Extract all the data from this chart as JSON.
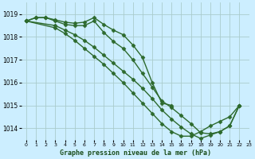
{
  "title": "Graphe pression niveau de la mer (hPa)",
  "bg_color": "#cceeff",
  "grid_color": "#aacccc",
  "line_color": "#2d6a2d",
  "xlim": [
    -0.5,
    23
  ],
  "ylim": [
    1013.5,
    1019.5
  ],
  "yticks": [
    1014,
    1015,
    1016,
    1017,
    1018,
    1019
  ],
  "xticks": [
    0,
    1,
    2,
    3,
    4,
    5,
    6,
    7,
    8,
    9,
    10,
    11,
    12,
    13,
    14,
    15,
    16,
    17,
    18,
    19,
    20,
    21,
    22,
    23
  ],
  "series": [
    {
      "x": [
        0,
        1,
        2,
        3,
        4,
        5,
        6,
        7,
        8,
        9,
        10,
        11,
        12,
        13,
        14,
        15
      ],
      "y": [
        1018.7,
        1018.85,
        1018.85,
        1018.75,
        1018.65,
        1018.6,
        1018.65,
        1018.85,
        1018.55,
        1018.3,
        1018.1,
        1017.65,
        1017.1,
        1016.0,
        1015.1,
        1015.0
      ],
      "marker": "D",
      "markersize": 2.5,
      "lw": 1.0
    },
    {
      "x": [
        0,
        1,
        2,
        3,
        4,
        5,
        6,
        7,
        8,
        9,
        10,
        11,
        12,
        13,
        14,
        15,
        16,
        17,
        18,
        19,
        20,
        21,
        22
      ],
      "y": [
        1018.7,
        1018.85,
        1018.85,
        1018.7,
        1018.55,
        1018.5,
        1018.5,
        1018.7,
        1018.2,
        1017.8,
        1017.5,
        1017.0,
        1016.4,
        1015.8,
        1015.2,
        1014.9,
        1014.55,
        1014.2,
        1013.8,
        1013.75,
        1013.85,
        1014.1,
        1015.0
      ],
      "marker": "D",
      "markersize": 2.5,
      "lw": 1.0
    },
    {
      "x": [
        0,
        3,
        4,
        5,
        6,
        7,
        8,
        9,
        10,
        11,
        12,
        13,
        14,
        15,
        16,
        17,
        18,
        19,
        20,
        21,
        22
      ],
      "y": [
        1018.7,
        1018.5,
        1018.3,
        1018.1,
        1017.85,
        1017.55,
        1017.2,
        1016.85,
        1016.5,
        1016.15,
        1015.75,
        1015.3,
        1014.8,
        1014.4,
        1014.05,
        1013.75,
        1013.55,
        1013.7,
        1013.85,
        1014.1,
        1015.0
      ],
      "marker": "D",
      "markersize": 2.5,
      "lw": 1.0
    },
    {
      "x": [
        0,
        3,
        4,
        5,
        6,
        7,
        8,
        9,
        10,
        11,
        12,
        13,
        14,
        15,
        16,
        17,
        18,
        19,
        20,
        21,
        22
      ],
      "y": [
        1018.7,
        1018.4,
        1018.15,
        1017.85,
        1017.5,
        1017.15,
        1016.8,
        1016.4,
        1016.0,
        1015.55,
        1015.1,
        1014.65,
        1014.2,
        1013.85,
        1013.65,
        1013.65,
        1013.85,
        1014.1,
        1014.3,
        1014.5,
        1015.0
      ],
      "marker": "D",
      "markersize": 2.5,
      "lw": 1.0
    }
  ]
}
